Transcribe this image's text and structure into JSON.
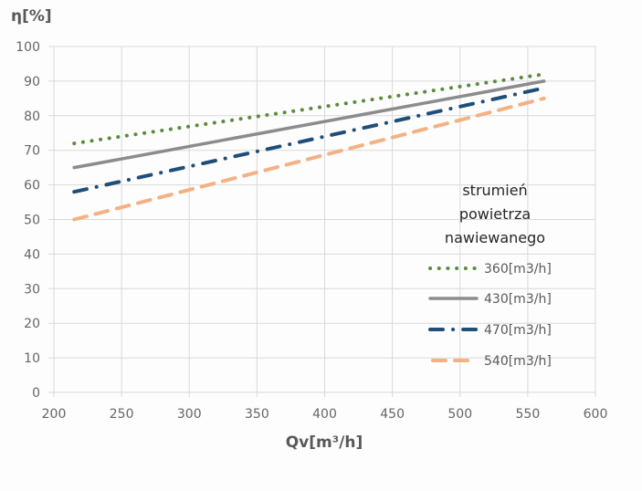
{
  "chart_data": {
    "type": "line",
    "title": "",
    "xlabel": "Qv[m³/h]",
    "ylabel": "η[%]",
    "xlim": [
      200,
      600
    ],
    "ylim": [
      0,
      100
    ],
    "xticks": [
      200,
      250,
      300,
      350,
      400,
      450,
      500,
      550,
      600
    ],
    "yticks": [
      0,
      10,
      20,
      30,
      40,
      50,
      60,
      70,
      80,
      90,
      100
    ],
    "grid": true,
    "legend": {
      "title_lines": [
        "strumień",
        "powietrza",
        "nawiewanego"
      ],
      "placement": "right"
    },
    "series": [
      {
        "name": "360[m3/h]",
        "color": "#5b8c3e",
        "style": "dotted",
        "x": [
          215,
          562
        ],
        "y": [
          72,
          92
        ]
      },
      {
        "name": "430[m3/h]",
        "color": "#8c8c8c",
        "style": "solid",
        "x": [
          215,
          562
        ],
        "y": [
          65,
          90
        ]
      },
      {
        "name": "470[m3/h]",
        "color": "#1f4e79",
        "style": "dash-dot",
        "x": [
          215,
          562
        ],
        "y": [
          58,
          88
        ]
      },
      {
        "name": "540[m3/h]",
        "color": "#f4b183",
        "style": "dashed",
        "x": [
          215,
          562
        ],
        "y": [
          50,
          85
        ]
      }
    ]
  }
}
